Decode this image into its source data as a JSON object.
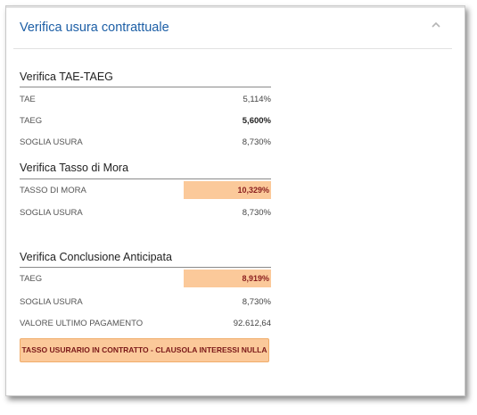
{
  "panel": {
    "title": "Verifica usura contrattuale"
  },
  "tae_taeg": {
    "title": "Verifica TAE-TAEG",
    "rows": [
      {
        "label": "TAE",
        "value": "5,114%"
      },
      {
        "label": "TAEG",
        "value": "5,600%"
      },
      {
        "label": "SOGLIA USURA",
        "value": "8,730%"
      }
    ]
  },
  "mora": {
    "title": "Verifica Tasso di Mora",
    "rows": [
      {
        "label": "TASSO DI MORA",
        "value": "10,329%"
      },
      {
        "label": "SOGLIA USURA",
        "value": "8,730%"
      }
    ]
  },
  "anticipata": {
    "title": "Verifica Conclusione Anticipata",
    "rows": [
      {
        "label": "TAEG",
        "value": "8,919%"
      },
      {
        "label": "SOGLIA USURA",
        "value": "8,730%"
      },
      {
        "label": "VALORE ULTIMO PAGAMENTO",
        "value": "92.612,64"
      }
    ]
  },
  "warning": {
    "text": "TASSO USURARIO IN CONTRATTO - CLAUSOLA INTERESSI NULLA"
  },
  "colors": {
    "title_blue": "#1d5fa6",
    "highlight": "#fbc99a",
    "highlight_text": "#8a1e1e"
  },
  "icons": {
    "collapse": "chevron-up-icon"
  }
}
